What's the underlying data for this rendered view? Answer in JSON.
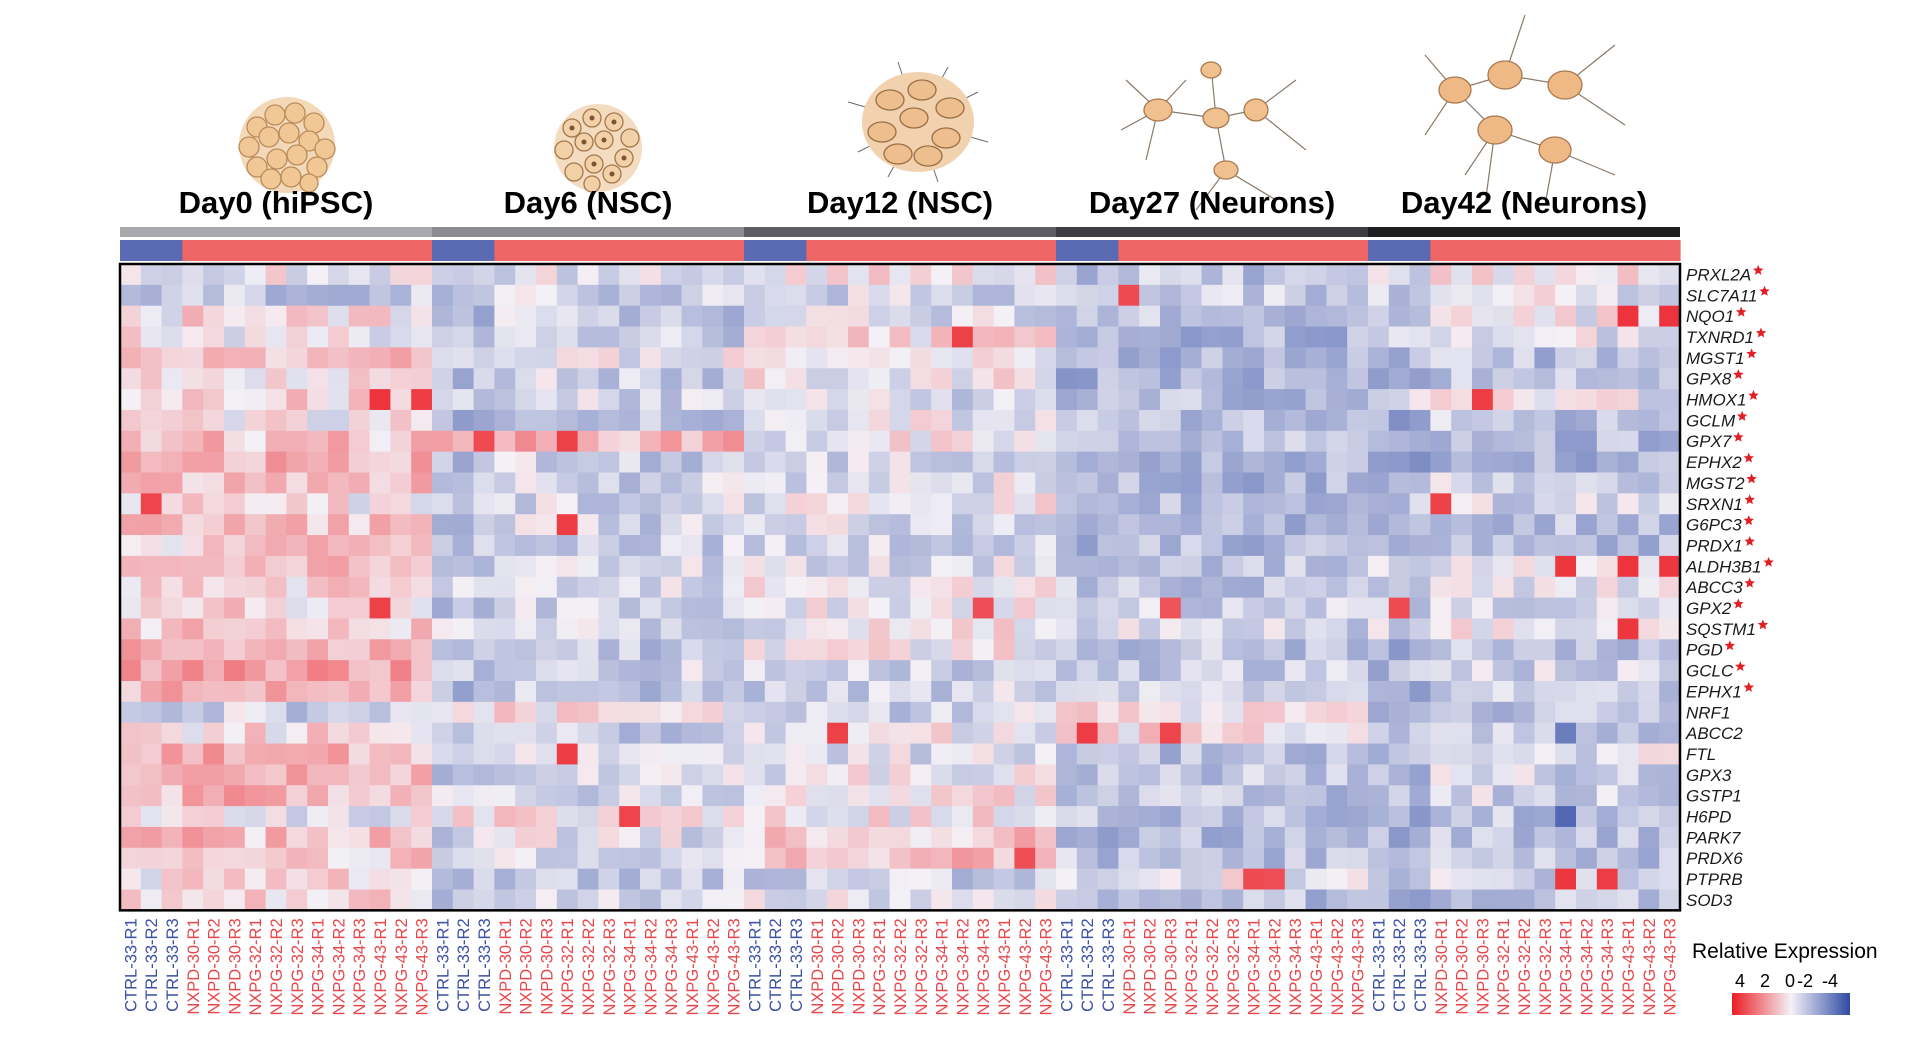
{
  "chart_data": {
    "type": "heatmap",
    "title": "",
    "value_scale": {
      "label": "Relative Expression",
      "ticks": [
        "4",
        "2",
        "0",
        "-2",
        "-4"
      ],
      "range": [
        -4,
        4
      ],
      "high_color": "#ec1c24",
      "mid_color": "#f4f1f6",
      "low_color": "#2f4aa3"
    },
    "groups": [
      {
        "label": "Day0 (hiPSC)",
        "bar_color": "#a7a9ac"
      },
      {
        "label": "Day6 (NSC)",
        "bar_color": "#8a8c8f"
      },
      {
        "label": "Day12 (NSC)",
        "bar_color": "#5d5f62"
      },
      {
        "label": "Day27 (Neurons)",
        "bar_color": "#3c3d40"
      },
      {
        "label": "Day42 (Neurons)",
        "bar_color": "#1e1f21"
      }
    ],
    "condition_colors": {
      "CTRL": "#5a6bb3",
      "NXP": "#ef6666"
    },
    "columns": [
      "CTRL-33-R1",
      "CTRL-33-R2",
      "CTRL-33-R3",
      "NXPD-30-R1",
      "NXPD-30-R2",
      "NXPD-30-R3",
      "NXPG-32-R1",
      "NXPG-32-R2",
      "NXPG-32-R3",
      "NXPG-34-R1",
      "NXPG-34-R2",
      "NXPG-34-R3",
      "NXPG-43-R1",
      "NXPG-43-R2",
      "NXPG-43-R3"
    ],
    "rows": [
      {
        "gene": "PRXL2A",
        "significant": true
      },
      {
        "gene": "SLC7A11",
        "significant": true
      },
      {
        "gene": "NQO1",
        "significant": true
      },
      {
        "gene": "TXNRD1",
        "significant": true
      },
      {
        "gene": "MGST1",
        "significant": true
      },
      {
        "gene": "GPX8",
        "significant": true
      },
      {
        "gene": "HMOX1",
        "significant": true
      },
      {
        "gene": "GCLM",
        "significant": true
      },
      {
        "gene": "GPX7",
        "significant": true
      },
      {
        "gene": "EPHX2",
        "significant": true
      },
      {
        "gene": "MGST2",
        "significant": true
      },
      {
        "gene": "SRXN1",
        "significant": true
      },
      {
        "gene": "G6PC3",
        "significant": true
      },
      {
        "gene": "PRDX1",
        "significant": true
      },
      {
        "gene": "ALDH3B1",
        "significant": true
      },
      {
        "gene": "ABCC3",
        "significant": true
      },
      {
        "gene": "GPX2",
        "significant": true
      },
      {
        "gene": "SQSTM1",
        "significant": true
      },
      {
        "gene": "PGD",
        "significant": true
      },
      {
        "gene": "GCLC",
        "significant": true
      },
      {
        "gene": "EPHX1",
        "significant": true
      },
      {
        "gene": "NRF1",
        "significant": false
      },
      {
        "gene": "ABCC2",
        "significant": false
      },
      {
        "gene": "FTL",
        "significant": false
      },
      {
        "gene": "GPX3",
        "significant": false
      },
      {
        "gene": "GSTP1",
        "significant": false
      },
      {
        "gene": "H6PD",
        "significant": false
      },
      {
        "gene": "PARK7",
        "significant": false
      },
      {
        "gene": "PRDX6",
        "significant": false
      },
      {
        "gene": "PTPRB",
        "significant": false
      },
      {
        "gene": "SOD3",
        "significant": false
      }
    ],
    "group_mean_z": [
      [
        0.2,
        -0.5,
        0.5,
        0.3,
        1.0,
        0.3,
        0.8,
        0.3,
        1.0,
        1.2,
        1.0,
        0.4,
        1.1,
        0.8,
        1.1,
        0.6,
        0.6,
        0.9,
        1.3,
        1.6,
        1.2,
        -0.4,
        0.6,
        1.2,
        1.2,
        1.2,
        0.2,
        1.0,
        0.8,
        0.5,
        0.6
      ],
      [
        0.0,
        -0.4,
        -0.5,
        -0.4,
        0.2,
        -0.4,
        -0.2,
        -0.6,
        1.2,
        -0.4,
        -0.3,
        -0.2,
        -0.3,
        -0.3,
        -0.2,
        -0.2,
        -0.3,
        -0.1,
        -0.5,
        -0.3,
        -0.6,
        0.4,
        -0.4,
        0.0,
        -0.2,
        -0.1,
        0.6,
        0.0,
        0.0,
        -0.4,
        -0.3
      ],
      [
        0.3,
        -0.3,
        -0.2,
        0.5,
        0.4,
        0.3,
        -0.3,
        0.1,
        0.2,
        -0.3,
        0.0,
        0.1,
        -0.2,
        -0.3,
        -0.2,
        0.2,
        0.1,
        0.2,
        0.2,
        -0.4,
        -0.4,
        -0.4,
        0.2,
        -0.1,
        0.2,
        0.3,
        0.3,
        0.9,
        1.0,
        -0.5,
        -0.1
      ],
      [
        -0.6,
        -0.4,
        -0.7,
        -0.9,
        -1.0,
        -1.0,
        -0.7,
        -0.7,
        -0.6,
        -0.9,
        -0.9,
        -0.8,
        -0.8,
        -0.8,
        -0.6,
        -0.5,
        -0.4,
        -0.3,
        -0.6,
        -0.5,
        -0.5,
        0.6,
        0.5,
        -0.8,
        -0.5,
        -0.6,
        -0.7,
        -0.8,
        -0.6,
        0.2,
        -0.7
      ],
      [
        0.7,
        0.4,
        0.5,
        0.3,
        -0.4,
        -0.4,
        0.4,
        -0.4,
        -0.5,
        -0.7,
        0.0,
        0.0,
        -0.4,
        -0.5,
        0.5,
        0.3,
        0.2,
        0.5,
        -0.4,
        0.0,
        -0.2,
        -0.3,
        -0.1,
        0.2,
        0.0,
        0.0,
        -0.3,
        -0.3,
        -0.3,
        -0.2,
        -0.3
      ]
    ],
    "condition_offset": [
      [
        -0.3,
        -0.2,
        -0.3
      ],
      [
        -0.5,
        -0.2,
        -0.3
      ],
      [
        -0.3,
        -0.2,
        -0.2
      ],
      [
        -0.3,
        -0.2,
        -0.3
      ],
      [
        -1.0,
        -0.4,
        -0.6
      ]
    ],
    "hotspots": [
      {
        "group": 0,
        "row": 6,
        "column": 12,
        "value": 3.5
      },
      {
        "group": 0,
        "row": 6,
        "column": 14,
        "value": 3.3
      },
      {
        "group": 0,
        "row": 11,
        "column": 1,
        "value": 3.1
      },
      {
        "group": 0,
        "row": 16,
        "column": 12,
        "value": 3.2
      },
      {
        "group": 1,
        "row": 8,
        "column": 2,
        "value": 3.0
      },
      {
        "group": 1,
        "row": 8,
        "column": 6,
        "value": 3.2
      },
      {
        "group": 1,
        "row": 12,
        "column": 6,
        "value": 3.3
      },
      {
        "group": 1,
        "row": 23,
        "column": 6,
        "value": 3.3
      },
      {
        "group": 1,
        "row": 26,
        "column": 9,
        "value": 3.1
      },
      {
        "group": 2,
        "row": 3,
        "column": 10,
        "value": 3.2
      },
      {
        "group": 2,
        "row": 22,
        "column": 4,
        "value": 3.2
      },
      {
        "group": 2,
        "row": 16,
        "column": 11,
        "value": 2.9
      },
      {
        "group": 2,
        "row": 28,
        "column": 13,
        "value": 2.9
      },
      {
        "group": 3,
        "row": 1,
        "column": 3,
        "value": 3.0
      },
      {
        "group": 3,
        "row": 22,
        "column": 1,
        "value": 3.3
      },
      {
        "group": 3,
        "row": 22,
        "column": 5,
        "value": 3.1
      },
      {
        "group": 3,
        "row": 29,
        "column": 9,
        "value": 3.0
      },
      {
        "group": 3,
        "row": 29,
        "column": 10,
        "value": 2.9
      },
      {
        "group": 3,
        "row": 16,
        "column": 5,
        "value": 2.8
      },
      {
        "group": 4,
        "row": 2,
        "column": 12,
        "value": 3.5
      },
      {
        "group": 4,
        "row": 2,
        "column": 14,
        "value": 3.5
      },
      {
        "group": 4,
        "row": 6,
        "column": 5,
        "value": 3.3
      },
      {
        "group": 4,
        "row": 11,
        "column": 3,
        "value": 3.2
      },
      {
        "group": 4,
        "row": 14,
        "column": 9,
        "value": 3.4
      },
      {
        "group": 4,
        "row": 14,
        "column": 12,
        "value": 3.5
      },
      {
        "group": 4,
        "row": 14,
        "column": 14,
        "value": 3.4
      },
      {
        "group": 4,
        "row": 16,
        "column": 1,
        "value": 3.0
      },
      {
        "group": 4,
        "row": 17,
        "column": 12,
        "value": 3.4
      },
      {
        "group": 4,
        "row": 29,
        "column": 9,
        "value": 3.4
      },
      {
        "group": 4,
        "row": 29,
        "column": 11,
        "value": 3.3
      },
      {
        "group": 4,
        "row": 26,
        "column": 9,
        "value": -3.2
      },
      {
        "group": 4,
        "row": 22,
        "column": 9,
        "value": -2.6
      }
    ]
  }
}
